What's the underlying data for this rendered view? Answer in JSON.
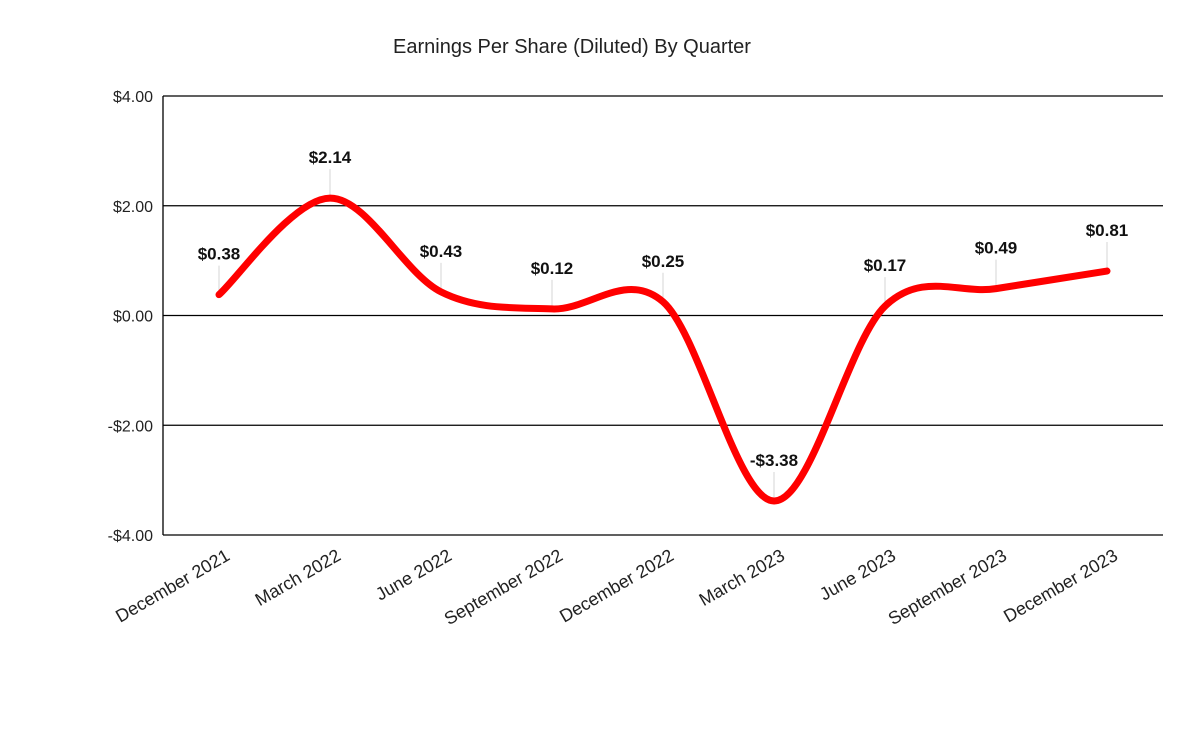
{
  "chart_data": {
    "type": "line",
    "title": "Earnings Per Share (Diluted) By Quarter",
    "xlabel": "",
    "ylabel": "",
    "categories": [
      "December 2021",
      "March 2022",
      "June 2022",
      "September 2022",
      "December 2022",
      "March 2023",
      "June 2023",
      "September 2023",
      "December 2023"
    ],
    "values": [
      0.38,
      2.14,
      0.43,
      0.12,
      0.25,
      -3.38,
      0.17,
      0.49,
      0.81
    ],
    "data_labels": [
      "$0.38",
      "$2.14",
      "$0.43",
      "$0.12",
      "$0.25",
      "-$3.38",
      "$0.17",
      "$0.49",
      "$0.81"
    ],
    "ylim": [
      -4,
      4
    ],
    "yticks": [
      4,
      2,
      0,
      -2,
      -4
    ],
    "ytick_labels": [
      "$4.00",
      "$2.00",
      "$0.00",
      "-$2.00",
      "-$4.00"
    ],
    "grid": true,
    "line_color": "#ff0000",
    "smooth": true,
    "legend": "none"
  }
}
